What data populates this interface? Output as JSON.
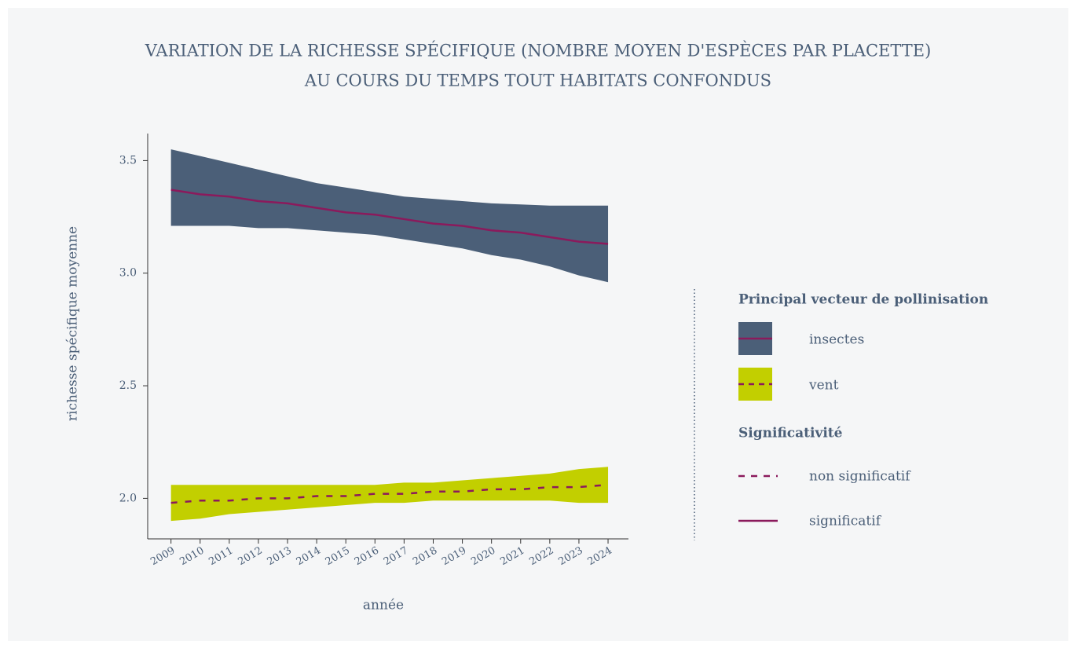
{
  "chart_data": {
    "type": "line",
    "title": [
      "VARIATION DE LA RICHESSE SPÉCIFIQUE (NOMBRE MOYEN D'ESPÈCES PAR PLACETTE)",
      "AU COURS DU TEMPS TOUT HABITATS CONFONDUS"
    ],
    "x_label": "année",
    "y_label": "richesse spécifique moyenne",
    "x": [
      2009,
      2010,
      2011,
      2012,
      2013,
      2014,
      2015,
      2016,
      2017,
      2018,
      2019,
      2020,
      2021,
      2022,
      2023,
      2024
    ],
    "xlim": [
      2008.2,
      2024.7
    ],
    "xticks": [
      2009,
      2010,
      2011,
      2012,
      2013,
      2014,
      2015,
      2016,
      2017,
      2018,
      2019,
      2020,
      2021,
      2022,
      2023,
      2024
    ],
    "ylim": [
      1.82,
      3.62
    ],
    "yticks": [
      {
        "value": 2,
        "label": "2.0"
      },
      2.5,
      {
        "value": 3,
        "label": "3.0"
      },
      3.5
    ],
    "grid": false,
    "legend_title": "Principal vecteur de pollinisation",
    "series": [
      {
        "name": "insectes",
        "color": "#8b1a5c",
        "band_color": "#4b5f78",
        "dashed": false,
        "values": [
          3.37,
          3.35,
          3.34,
          3.32,
          3.31,
          3.29,
          3.27,
          3.26,
          3.24,
          3.22,
          3.21,
          3.19,
          3.18,
          3.16,
          3.14,
          3.13
        ],
        "upper": [
          3.55,
          3.52,
          3.49,
          3.46,
          3.43,
          3.4,
          3.38,
          3.36,
          3.34,
          3.33,
          3.32,
          3.31,
          3.305,
          3.3,
          3.3,
          3.3
        ],
        "lower": [
          3.21,
          3.21,
          3.21,
          3.2,
          3.2,
          3.19,
          3.18,
          3.17,
          3.15,
          3.13,
          3.11,
          3.08,
          3.06,
          3.03,
          2.99,
          2.96
        ]
      },
      {
        "name": "vent",
        "color": "#8b1a5c",
        "band_color": "#c2cf00",
        "dashed": true,
        "values": [
          1.98,
          1.99,
          1.99,
          2.0,
          2.0,
          2.01,
          2.01,
          2.02,
          2.02,
          2.03,
          2.03,
          2.04,
          2.04,
          2.05,
          2.05,
          2.06
        ],
        "upper": [
          2.06,
          2.06,
          2.06,
          2.06,
          2.06,
          2.06,
          2.06,
          2.06,
          2.07,
          2.07,
          2.08,
          2.09,
          2.1,
          2.11,
          2.13,
          2.14
        ],
        "lower": [
          1.9,
          1.91,
          1.93,
          1.94,
          1.95,
          1.96,
          1.97,
          1.98,
          1.98,
          1.99,
          1.99,
          1.99,
          1.99,
          1.99,
          1.98,
          1.98
        ]
      }
    ],
    "significance_title": "Significativité",
    "significance": [
      {
        "label": "non significatif",
        "dashed": true
      },
      {
        "label": "significatif",
        "dashed": false
      }
    ]
  }
}
